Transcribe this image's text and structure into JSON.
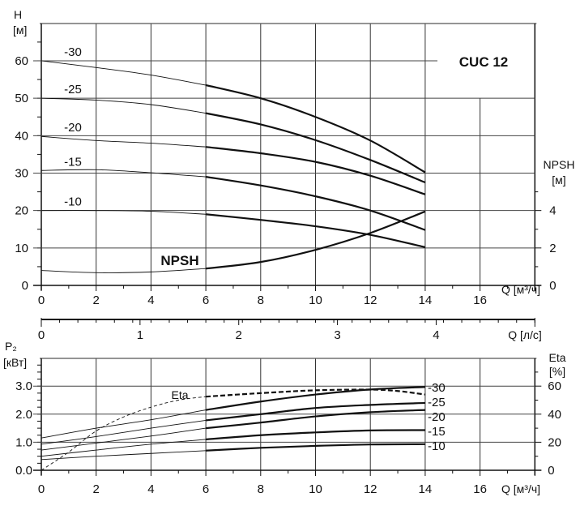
{
  "chart_data": [
    {
      "type": "line",
      "title": "CUC 12",
      "xlabel": "Q [м³/ч]",
      "ylabel": "H\n[м]",
      "xlim": [
        0,
        18
      ],
      "ylim": [
        0,
        70
      ],
      "x_ticks": [
        "0",
        "2",
        "4",
        "6",
        "8",
        "10",
        "12",
        "14",
        "16"
      ],
      "y_ticks": [
        "0",
        "10",
        "20",
        "30",
        "40",
        "50",
        "60"
      ],
      "y2label": "NPSH\n[м]",
      "y2_ticks": [
        "0",
        "2",
        "4"
      ],
      "y2lim": [
        0,
        14
      ],
      "grid": true,
      "x": [
        0,
        2,
        4,
        6,
        8,
        10,
        12,
        14
      ],
      "series": [
        {
          "name": "-30",
          "values": [
            60,
            58.2,
            56.2,
            53.5,
            50,
            45,
            38.7,
            30.2
          ]
        },
        {
          "name": "-25",
          "values": [
            50,
            49.5,
            48.3,
            46,
            43,
            38.8,
            33.5,
            27.5
          ]
        },
        {
          "name": "-20",
          "values": [
            39.8,
            38.7,
            38,
            37,
            35.3,
            33,
            29.3,
            24.3
          ]
        },
        {
          "name": "-15",
          "values": [
            30.7,
            30.9,
            30.1,
            29,
            26.7,
            23.8,
            20,
            14.8
          ]
        },
        {
          "name": "-10",
          "values": [
            20,
            20,
            19.8,
            19,
            17.5,
            15.8,
            13.5,
            10.2
          ]
        },
        {
          "name": "NPSH",
          "axis": "y2",
          "values": [
            0.8,
            0.68,
            0.72,
            0.9,
            1.25,
            1.9,
            2.8,
            3.95
          ]
        }
      ]
    },
    {
      "type": "axis",
      "xlabel": "Q [л/с]",
      "x_ticks": [
        "0",
        "1",
        "2",
        "3",
        "4"
      ]
    },
    {
      "type": "line",
      "xlabel": "Q [м³/ч]",
      "ylabel": "P₂\n[кВт]",
      "xlim": [
        0,
        18
      ],
      "ylim": [
        0,
        3.25
      ],
      "x_ticks": [
        "0",
        "2",
        "4",
        "6",
        "8",
        "10",
        "12",
        "14",
        "16"
      ],
      "y_ticks": [
        "0.0",
        "1.0",
        "2.0",
        "3.0"
      ],
      "y2label": "Eta\n[%]",
      "y2_ticks": [
        "0",
        "20",
        "40",
        "60"
      ],
      "y2lim": [
        0,
        65
      ],
      "grid": true,
      "x": [
        0,
        2,
        4,
        6,
        8,
        10,
        12,
        14
      ],
      "series": [
        {
          "name": "-30",
          "values": [
            1.15,
            1.5,
            1.8,
            2.15,
            2.45,
            2.7,
            2.88,
            2.97
          ]
        },
        {
          "name": "-25",
          "values": [
            0.93,
            1.2,
            1.5,
            1.78,
            2.0,
            2.22,
            2.33,
            2.4
          ]
        },
        {
          "name": "-20",
          "values": [
            0.72,
            0.97,
            1.22,
            1.5,
            1.7,
            1.92,
            2.07,
            2.15
          ]
        },
        {
          "name": "-15",
          "values": [
            0.5,
            0.72,
            0.93,
            1.1,
            1.25,
            1.35,
            1.42,
            1.43
          ]
        },
        {
          "name": "-10",
          "values": [
            0.38,
            0.5,
            0.6,
            0.7,
            0.8,
            0.87,
            0.92,
            0.93
          ]
        },
        {
          "name": "Eta",
          "axis": "y2",
          "style": "dashed",
          "x": [
            0,
            1,
            2,
            3,
            4,
            5,
            6,
            8,
            10,
            12,
            13,
            14
          ],
          "values": [
            0,
            13,
            28,
            38,
            45,
            50,
            52.5,
            55,
            57,
            57.5,
            56.5,
            54
          ]
        }
      ]
    }
  ]
}
